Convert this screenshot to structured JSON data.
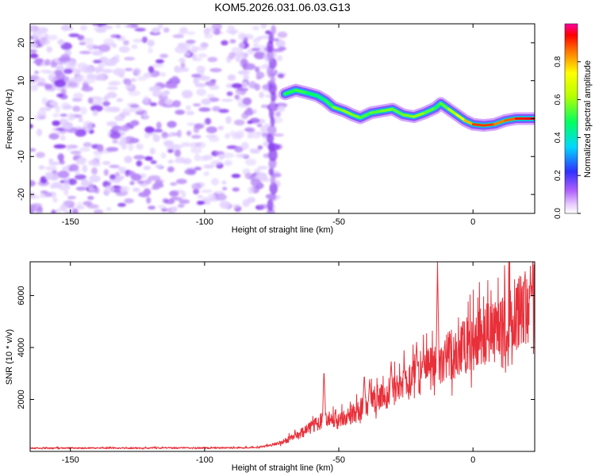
{
  "figure_title": "KOM5.2026.031.06.03.G13",
  "colors": {
    "background": "#ffffff",
    "axis": "#000000",
    "snr_line": "#e8303a",
    "noise_light": "#e3d2ff",
    "noise_dark": "#8a3ff0"
  },
  "chart_data": [
    {
      "type": "heatmap",
      "title": "",
      "xlabel": "Height of straight line (km)",
      "ylabel": "Frequency (Hz)",
      "xlim": [
        -165,
        23
      ],
      "ylim": [
        -25,
        25
      ],
      "xticks": [
        -150,
        -100,
        -50,
        0
      ],
      "xtick_labels": [
        "-150",
        "-100",
        "-50",
        "0"
      ],
      "yticks": [
        20,
        10,
        0,
        -10,
        -20
      ],
      "ytick_labels": [
        "20",
        "10",
        "0",
        "-10",
        "-20"
      ],
      "colorbar": {
        "label": "Normalized spectral amplitude",
        "range": [
          0,
          1
        ],
        "ticks": [
          0.0,
          0.2,
          0.4,
          0.6,
          0.8
        ],
        "tick_labels": [
          "0.0",
          "0.2",
          "0.4",
          "0.6",
          "0.8"
        ]
      },
      "noise_region_x": [
        -165,
        -75
      ],
      "signal_onset_x": -70,
      "signal_track": {
        "x": [
          -70,
          -66,
          -62,
          -58,
          -55,
          -52,
          -48,
          -45,
          -42,
          -38,
          -34,
          -30,
          -26,
          -22,
          -18,
          -14,
          -12,
          -9,
          -6,
          -3,
          0,
          4,
          8,
          12,
          16,
          20,
          23
        ],
        "y": [
          6.5,
          7.5,
          6.8,
          6.0,
          4.8,
          3.0,
          2.0,
          1.0,
          0.2,
          1.5,
          2.0,
          2.5,
          1.0,
          0.5,
          1.5,
          2.8,
          4.0,
          2.5,
          1.0,
          -0.5,
          -1.5,
          -1.8,
          -1.5,
          -0.5,
          0.0,
          0.0,
          0.0
        ],
        "amplitude": [
          0.45,
          0.55,
          0.5,
          0.45,
          0.45,
          0.55,
          0.6,
          0.6,
          0.55,
          0.5,
          0.6,
          0.55,
          0.55,
          0.6,
          0.6,
          0.5,
          0.5,
          0.6,
          0.7,
          0.75,
          0.85,
          0.95,
          0.85,
          0.85,
          0.9,
          0.95,
          0.95
        ]
      }
    },
    {
      "type": "line",
      "title": "",
      "xlabel": "Height of straight line (km)",
      "ylabel": "SNR (10 * v/v)",
      "xlim": [
        -165,
        23
      ],
      "ylim": [
        0,
        7300
      ],
      "xticks": [
        -150,
        -100,
        -50,
        0
      ],
      "xtick_labels": [
        "-150",
        "-100",
        "-50",
        "0"
      ],
      "yticks": [
        2000,
        4000,
        6000
      ],
      "ytick_labels": [
        "2000",
        "4000",
        "6000"
      ],
      "trend": {
        "x": [
          -165,
          -90,
          -80,
          -72,
          -65,
          -60,
          -55,
          -50,
          -45,
          -40,
          -35,
          -30,
          -25,
          -20,
          -15,
          -13,
          -10,
          -5,
          0,
          5,
          10,
          15,
          20,
          23
        ],
        "y": [
          120,
          130,
          150,
          300,
          600,
          900,
          1200,
          1100,
          1300,
          1700,
          2000,
          2200,
          2500,
          2700,
          3100,
          3000,
          3400,
          3700,
          4000,
          4300,
          4600,
          4900,
          5300,
          5600
        ]
      },
      "peaks": [
        {
          "x": -55.5,
          "y": 3200
        },
        {
          "x": -40.5,
          "y": 3000
        },
        {
          "x": -38.5,
          "y": 2800
        },
        {
          "x": -30.5,
          "y": 3500
        },
        {
          "x": -25.5,
          "y": 3100
        },
        {
          "x": -21.0,
          "y": 4200
        },
        {
          "x": -18.5,
          "y": 3800
        },
        {
          "x": -13.2,
          "y": 7300
        },
        {
          "x": 21.5,
          "y": 6600
        }
      ]
    }
  ]
}
